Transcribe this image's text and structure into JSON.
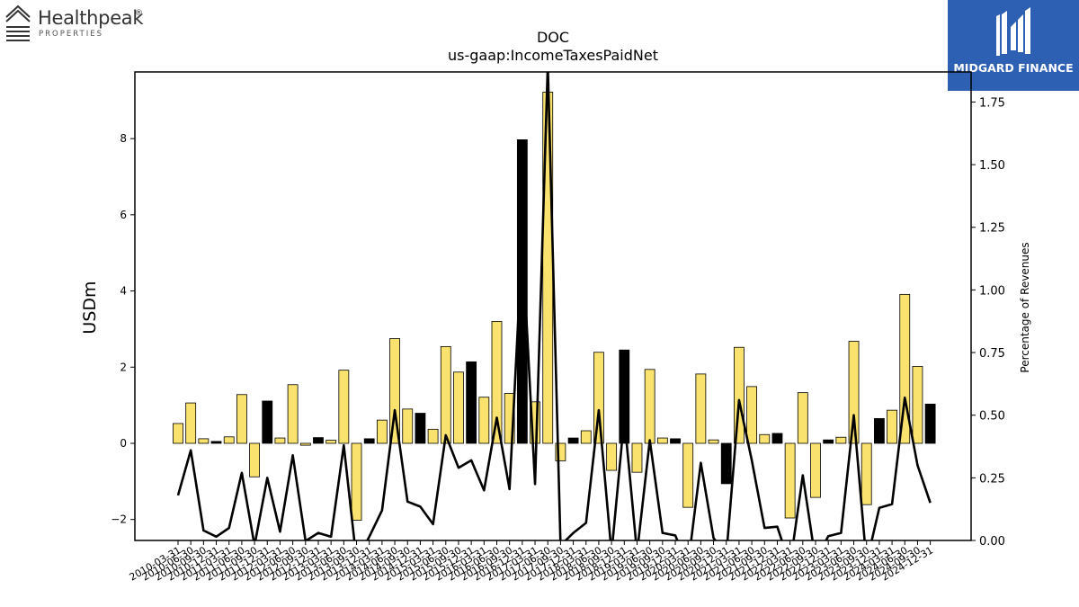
{
  "logos": {
    "left_name": "Healthpeak",
    "left_trademark": "®",
    "left_sub": "PROPERTIES",
    "right_name": "MIDGARD FINANCE"
  },
  "colors": {
    "positive_bar": "#f9e26e",
    "highlight_bar": "#000000",
    "line": "#000000",
    "brand_blue": "#2d5fb3"
  },
  "chart_data": {
    "type": "bar",
    "title": "DOC",
    "subtitle": "us-gaap:IncomeTaxesPaidNet",
    "ylabel": "USDm",
    "y2label": "Percentage of Revenues",
    "ylim": [
      -2.55,
      9.75
    ],
    "y2lim": [
      0.0,
      1.87
    ],
    "yticks": [
      -2,
      0,
      2,
      4,
      6,
      8
    ],
    "y2ticks": [
      "0.00",
      "0.25",
      "0.50",
      "0.75",
      "1.00",
      "1.25",
      "1.50",
      "1.75"
    ],
    "categories": [
      "2010-03-31",
      "2010-06-30",
      "2010-09-30",
      "2010-12-31",
      "2011-03-31",
      "2011-06-30",
      "2011-09-30",
      "2011-12-31",
      "2012-03-31",
      "2012-06-30",
      "2012-09-30",
      "2012-12-31",
      "2013-03-31",
      "2013-06-30",
      "2013-09-30",
      "2013-12-31",
      "2014-03-31",
      "2014-06-30",
      "2014-09-30",
      "2014-12-31",
      "2015-03-31",
      "2015-06-30",
      "2015-09-30",
      "2015-12-31",
      "2016-03-31",
      "2016-06-30",
      "2016-09-30",
      "2016-12-31",
      "2017-03-31",
      "2017-06-30",
      "2017-09-30",
      "2017-12-31",
      "2018-03-31",
      "2018-06-30",
      "2018-09-30",
      "2018-12-31",
      "2019-03-31",
      "2019-06-30",
      "2019-09-30",
      "2019-12-31",
      "2020-03-31",
      "2020-06-30",
      "2020-09-30",
      "2020-12-31",
      "2021-03-31",
      "2021-06-30",
      "2021-09-30",
      "2021-12-31",
      "2022-03-31",
      "2022-06-30",
      "2022-09-30",
      "2022-12-31",
      "2023-03-31",
      "2023-06-30",
      "2023-09-30",
      "2023-12-31",
      "2024-03-31",
      "2024-06-30",
      "2024-09-30",
      "2024-12-31"
    ],
    "series": [
      {
        "values": [
          0.52,
          1.06,
          0.12,
          0.05,
          0.17,
          1.28,
          -0.88,
          1.11,
          0.14,
          1.54,
          -0.05,
          0.15,
          0.08,
          1.92,
          -2.02,
          0.12,
          0.61,
          2.75,
          0.9,
          0.79,
          0.37,
          2.54,
          1.87,
          2.14,
          1.21,
          3.2,
          1.31,
          7.97,
          1.09,
          9.22,
          -0.46,
          0.14,
          0.33,
          2.39,
          -0.71,
          2.45,
          -0.76,
          1.94,
          0.14,
          0.12,
          -1.68,
          1.82,
          0.09,
          -1.06,
          2.52,
          1.49,
          0.23,
          0.26,
          -1.96,
          1.33,
          -1.42,
          0.09,
          0.16,
          2.68,
          -1.61,
          0.65,
          0.87,
          3.91,
          2.02,
          1.03
        ],
        "highlight": [
          false,
          false,
          false,
          true,
          false,
          false,
          false,
          true,
          false,
          false,
          false,
          true,
          false,
          false,
          false,
          true,
          false,
          false,
          false,
          true,
          false,
          false,
          false,
          true,
          false,
          false,
          false,
          true,
          false,
          false,
          false,
          true,
          false,
          false,
          false,
          true,
          false,
          false,
          false,
          true,
          false,
          false,
          false,
          true,
          false,
          false,
          false,
          true,
          false,
          false,
          false,
          true,
          false,
          false,
          false,
          true,
          false,
          false,
          false,
          true
        ]
      },
      {
        "axis": "right",
        "type": "line",
        "values": [
          0.18,
          0.36,
          0.04,
          0.015,
          0.05,
          0.27,
          -0.02,
          0.25,
          0.035,
          0.34,
          -0.002,
          0.03,
          0.015,
          0.38,
          -0.08,
          0.015,
          0.12,
          0.52,
          0.155,
          0.135,
          0.065,
          0.42,
          0.29,
          0.32,
          0.2,
          0.49,
          0.205,
          1.2,
          0.225,
          1.9,
          -0.02,
          0.03,
          0.07,
          0.52,
          -0.05,
          0.49,
          -0.05,
          0.4,
          0.03,
          0.02,
          -0.1,
          0.31,
          0.01,
          -0.06,
          0.56,
          0.32,
          0.05,
          0.055,
          -0.1,
          0.26,
          -0.08,
          0.017,
          0.03,
          0.5,
          -0.09,
          0.13,
          0.145,
          0.57,
          0.3,
          0.15
        ]
      }
    ]
  }
}
